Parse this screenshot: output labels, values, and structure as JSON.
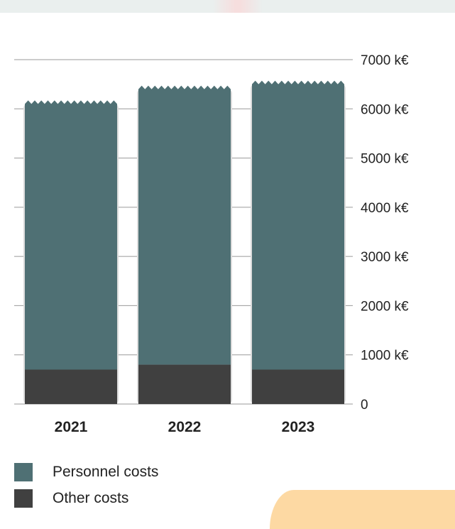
{
  "colors": {
    "personnel": "#4f7074",
    "other": "#404040",
    "grid": "#9a9a9a",
    "shadow": "#dcdcdc"
  },
  "chart_data": {
    "type": "bar",
    "stacked": true,
    "categories": [
      "2021",
      "2022",
      "2023"
    ],
    "series": [
      {
        "name": "Other costs",
        "values": [
          700,
          800,
          700
        ]
      },
      {
        "name": "Personnel costs",
        "values": [
          5400,
          5600,
          5800
        ]
      }
    ],
    "ylim": [
      0,
      7000
    ],
    "yticks": [
      0,
      1000,
      2000,
      3000,
      4000,
      5000,
      6000,
      7000
    ],
    "ytick_labels": [
      "0",
      "1000 k€",
      "2000 k€",
      "3000 k€",
      "4000 k€",
      "5000 k€",
      "6000 k€",
      "7000 k€"
    ],
    "y_axis_position": "right",
    "grid": true,
    "legend_position": "bottom-left",
    "legend": [
      "Personnel costs",
      "Other costs"
    ],
    "title": "",
    "xlabel": "",
    "ylabel": ""
  }
}
